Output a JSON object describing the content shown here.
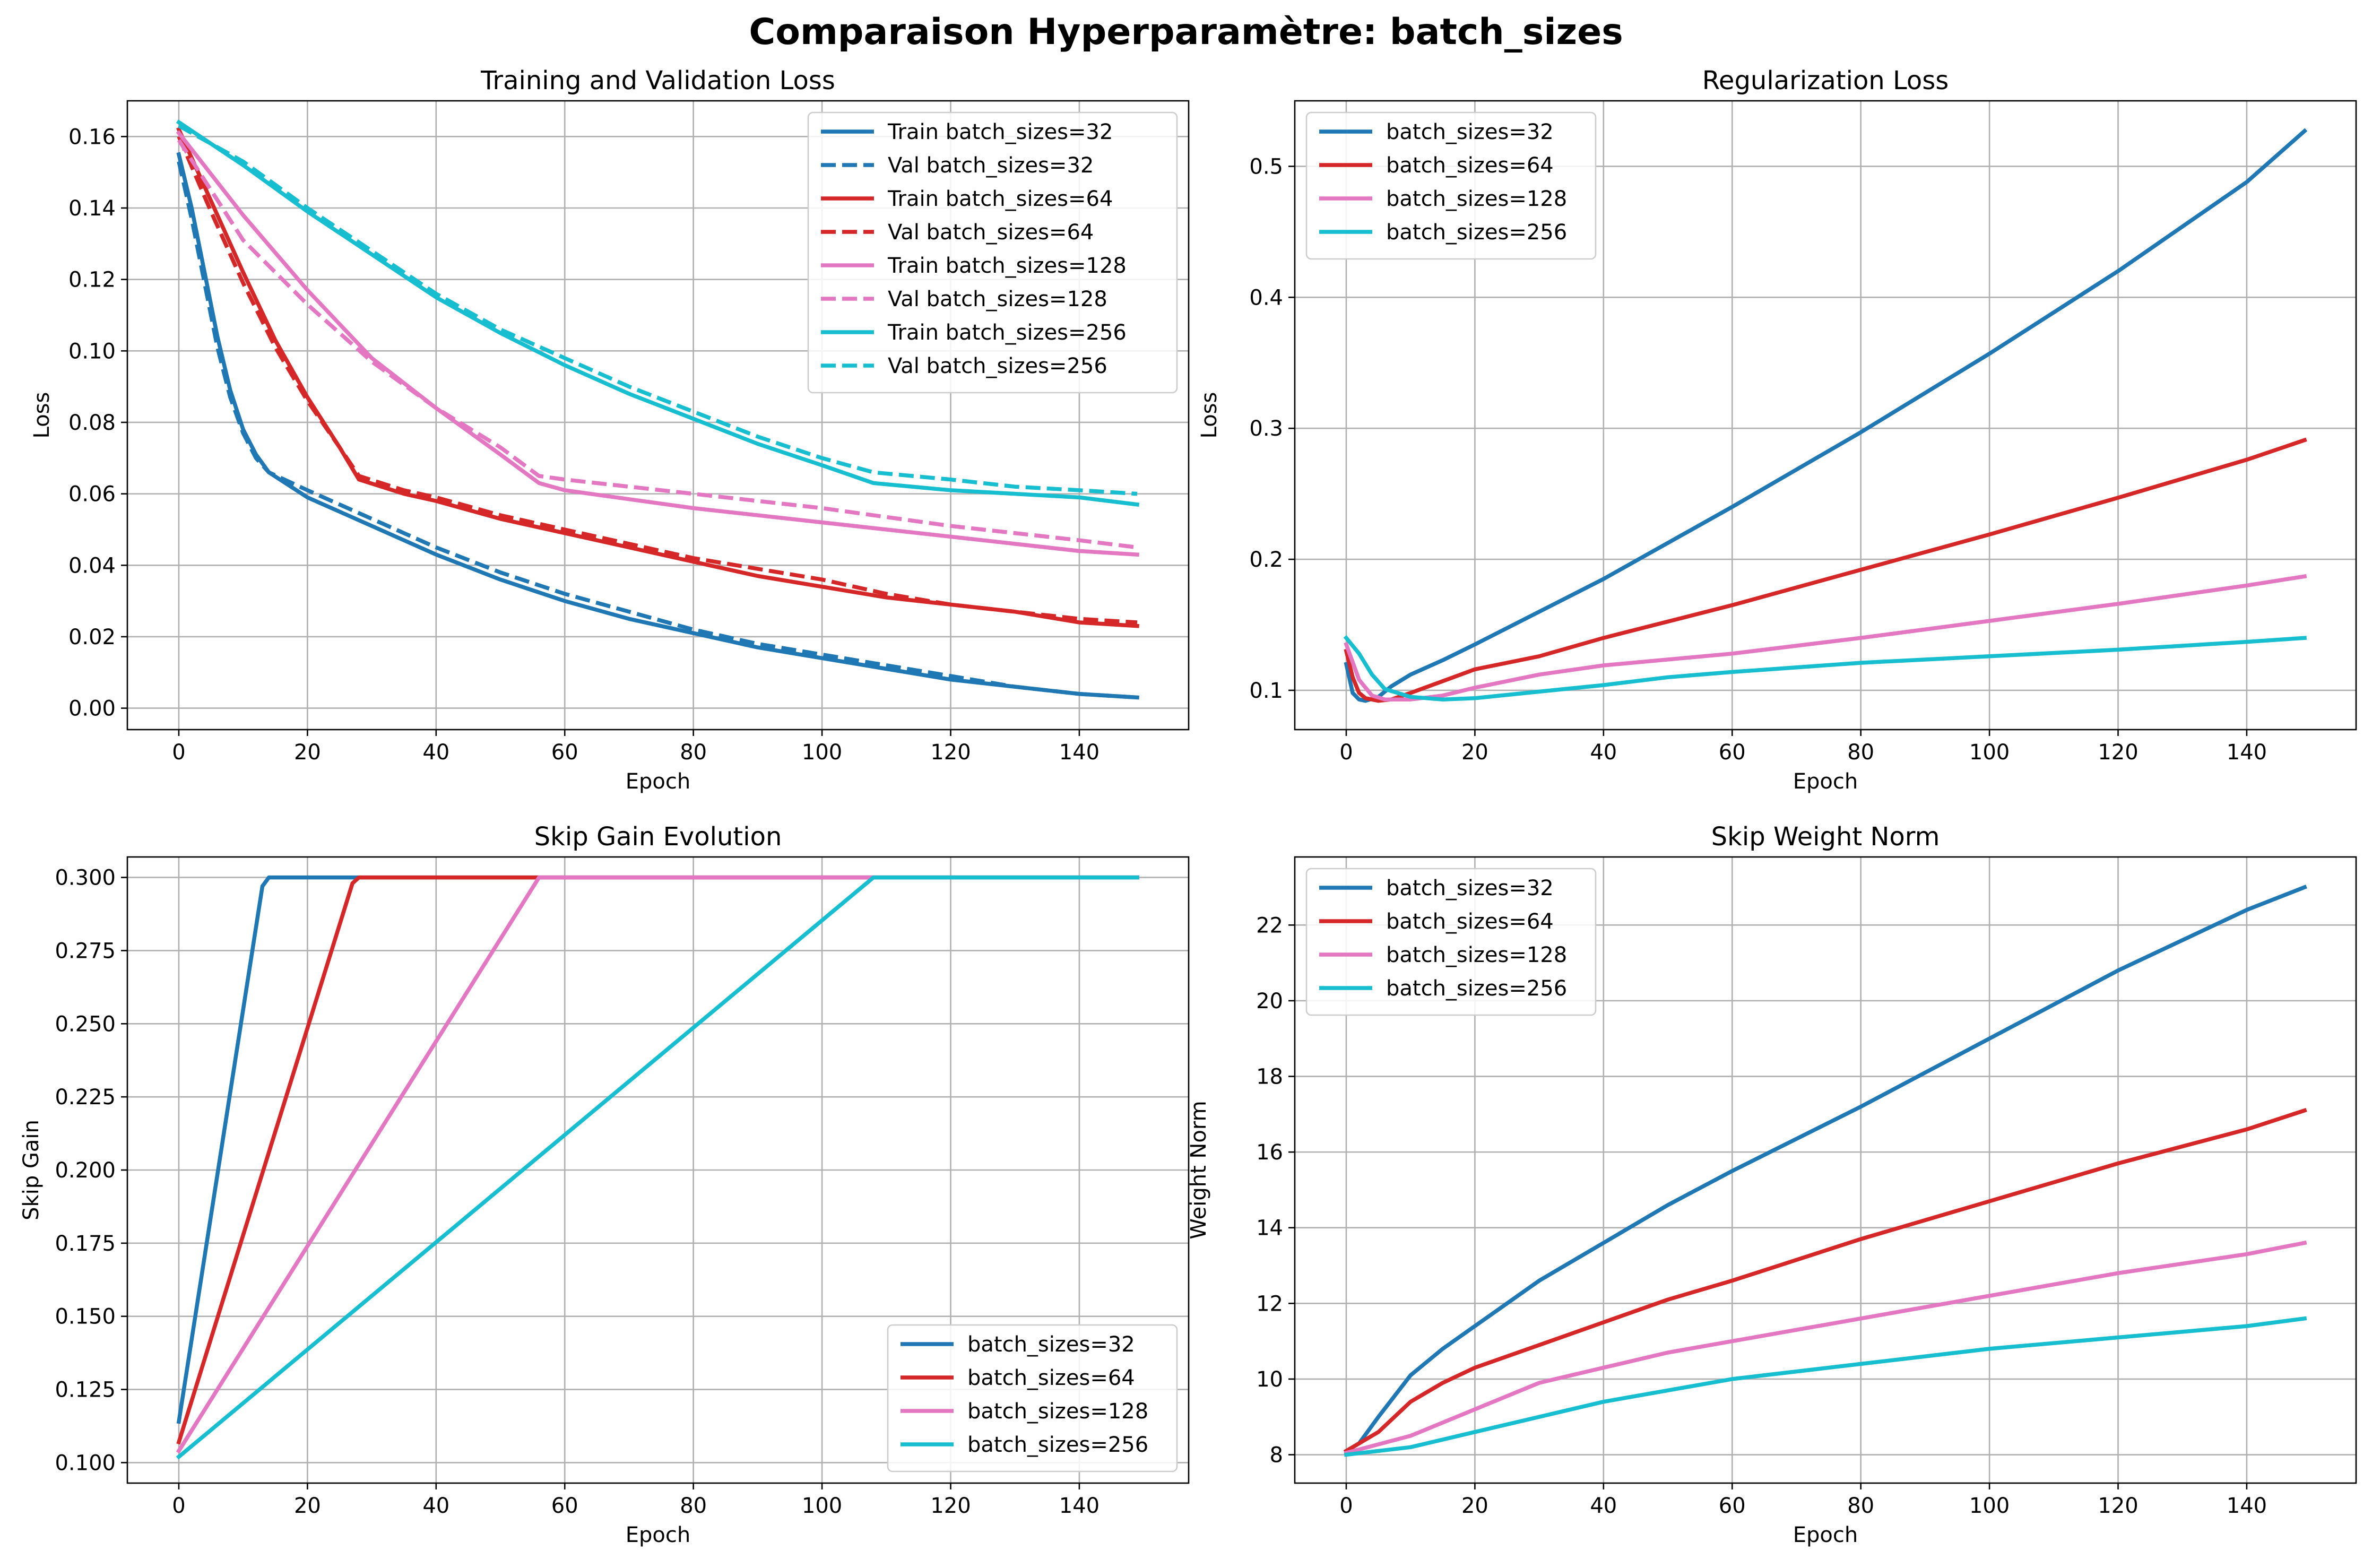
{
  "figure": {
    "title": "Comparaison Hyperparamètre: batch_sizes"
  },
  "colors": {
    "32": "#1f77b4",
    "64": "#d62728",
    "128": "#e377c2",
    "256": "#17becf",
    "grid": "#b0b0b0"
  },
  "chart_data": [
    {
      "type": "line",
      "title": "Training and Validation Loss",
      "xlabel": "Epoch",
      "ylabel": "Loss",
      "xlim": [
        -8,
        157
      ],
      "ylim": [
        -0.006,
        0.17
      ],
      "xticks": [
        0,
        20,
        40,
        60,
        80,
        100,
        120,
        140
      ],
      "yticks": [
        0.0,
        0.02,
        0.04,
        0.06,
        0.08,
        0.1,
        0.12,
        0.14,
        0.16
      ],
      "tick_decimals": 2,
      "grid": true,
      "legend": "upper right",
      "series": [
        {
          "name": "Train batch_sizes=32",
          "color": "#1f77b4",
          "dash": false,
          "x": [
            0,
            2,
            4,
            6,
            8,
            10,
            12,
            14,
            20,
            30,
            40,
            50,
            60,
            70,
            80,
            90,
            100,
            110,
            120,
            130,
            140,
            149
          ],
          "y": [
            0.155,
            0.14,
            0.122,
            0.104,
            0.089,
            0.078,
            0.071,
            0.066,
            0.059,
            0.051,
            0.043,
            0.036,
            0.03,
            0.025,
            0.021,
            0.017,
            0.014,
            0.011,
            0.008,
            0.006,
            0.004,
            0.003
          ]
        },
        {
          "name": "Val batch_sizes=32",
          "color": "#1f77b4",
          "dash": true,
          "x": [
            0,
            2,
            4,
            6,
            8,
            10,
            12,
            14,
            20,
            30,
            40,
            50,
            60,
            70,
            80,
            90,
            100,
            110,
            120,
            130,
            140,
            149
          ],
          "y": [
            0.153,
            0.137,
            0.119,
            0.101,
            0.087,
            0.077,
            0.07,
            0.066,
            0.061,
            0.053,
            0.045,
            0.038,
            0.032,
            0.027,
            0.022,
            0.018,
            0.015,
            0.012,
            0.009,
            0.006,
            0.004,
            0.003
          ]
        },
        {
          "name": "Train batch_sizes=64",
          "color": "#d62728",
          "dash": false,
          "x": [
            0,
            5,
            10,
            15,
            20,
            25,
            28,
            35,
            40,
            50,
            60,
            70,
            80,
            90,
            100,
            110,
            120,
            130,
            140,
            149
          ],
          "y": [
            0.162,
            0.142,
            0.122,
            0.103,
            0.087,
            0.073,
            0.064,
            0.06,
            0.058,
            0.053,
            0.049,
            0.045,
            0.041,
            0.037,
            0.034,
            0.031,
            0.029,
            0.027,
            0.024,
            0.023
          ]
        },
        {
          "name": "Val batch_sizes=64",
          "color": "#d62728",
          "dash": true,
          "x": [
            0,
            5,
            10,
            15,
            20,
            25,
            28,
            35,
            40,
            50,
            60,
            70,
            80,
            90,
            100,
            110,
            120,
            130,
            140,
            149
          ],
          "y": [
            0.16,
            0.139,
            0.119,
            0.101,
            0.086,
            0.073,
            0.065,
            0.061,
            0.059,
            0.054,
            0.05,
            0.046,
            0.042,
            0.039,
            0.036,
            0.032,
            0.029,
            0.027,
            0.025,
            0.024
          ]
        },
        {
          "name": "Train batch_sizes=128",
          "color": "#e377c2",
          "dash": false,
          "x": [
            0,
            10,
            20,
            30,
            40,
            50,
            56,
            60,
            80,
            100,
            120,
            140,
            149
          ],
          "y": [
            0.161,
            0.138,
            0.117,
            0.098,
            0.084,
            0.071,
            0.063,
            0.061,
            0.056,
            0.052,
            0.048,
            0.044,
            0.043
          ]
        },
        {
          "name": "Val batch_sizes=128",
          "color": "#e377c2",
          "dash": true,
          "x": [
            0,
            10,
            20,
            30,
            40,
            50,
            56,
            60,
            80,
            100,
            120,
            140,
            149
          ],
          "y": [
            0.159,
            0.131,
            0.113,
            0.097,
            0.084,
            0.073,
            0.065,
            0.064,
            0.06,
            0.056,
            0.051,
            0.047,
            0.045
          ]
        },
        {
          "name": "Train batch_sizes=256",
          "color": "#17becf",
          "dash": false,
          "x": [
            0,
            10,
            20,
            30,
            40,
            50,
            60,
            70,
            80,
            90,
            100,
            108,
            120,
            130,
            140,
            149
          ],
          "y": [
            0.164,
            0.152,
            0.139,
            0.127,
            0.115,
            0.105,
            0.096,
            0.088,
            0.081,
            0.074,
            0.068,
            0.063,
            0.061,
            0.06,
            0.059,
            0.057
          ]
        },
        {
          "name": "Val batch_sizes=256",
          "color": "#17becf",
          "dash": true,
          "x": [
            0,
            10,
            20,
            30,
            40,
            50,
            60,
            70,
            80,
            90,
            100,
            108,
            120,
            130,
            140,
            149
          ],
          "y": [
            0.163,
            0.153,
            0.14,
            0.128,
            0.116,
            0.106,
            0.098,
            0.09,
            0.083,
            0.076,
            0.07,
            0.066,
            0.064,
            0.062,
            0.061,
            0.06
          ]
        }
      ]
    },
    {
      "type": "line",
      "title": "Regularization Loss",
      "xlabel": "Epoch",
      "ylabel": "Loss",
      "xlim": [
        -8,
        157
      ],
      "ylim": [
        0.07,
        0.55
      ],
      "xticks": [
        0,
        20,
        40,
        60,
        80,
        100,
        120,
        140
      ],
      "yticks": [
        0.1,
        0.2,
        0.3,
        0.4,
        0.5
      ],
      "tick_decimals": 1,
      "grid": true,
      "legend": "upper left",
      "series": [
        {
          "name": "batch_sizes=32",
          "color": "#1f77b4",
          "dash": false,
          "x": [
            0,
            1,
            2,
            3,
            5,
            7,
            10,
            15,
            20,
            40,
            60,
            80,
            100,
            120,
            140,
            149
          ],
          "y": [
            0.12,
            0.098,
            0.093,
            0.092,
            0.095,
            0.103,
            0.112,
            0.123,
            0.135,
            0.185,
            0.24,
            0.297,
            0.357,
            0.42,
            0.488,
            0.527
          ]
        },
        {
          "name": "batch_sizes=64",
          "color": "#d62728",
          "dash": false,
          "x": [
            0,
            1,
            2,
            3,
            5,
            7,
            10,
            15,
            20,
            30,
            40,
            60,
            80,
            100,
            120,
            140,
            149
          ],
          "y": [
            0.13,
            0.11,
            0.098,
            0.094,
            0.092,
            0.093,
            0.098,
            0.107,
            0.116,
            0.126,
            0.14,
            0.165,
            0.192,
            0.219,
            0.247,
            0.276,
            0.291
          ]
        },
        {
          "name": "batch_sizes=128",
          "color": "#e377c2",
          "dash": false,
          "x": [
            0,
            2,
            4,
            6,
            10,
            15,
            20,
            30,
            40,
            60,
            80,
            100,
            120,
            140,
            149
          ],
          "y": [
            0.135,
            0.108,
            0.096,
            0.093,
            0.093,
            0.096,
            0.102,
            0.112,
            0.119,
            0.128,
            0.14,
            0.153,
            0.166,
            0.18,
            0.187
          ]
        },
        {
          "name": "batch_sizes=256",
          "color": "#17becf",
          "dash": false,
          "x": [
            0,
            2,
            4,
            6,
            10,
            15,
            20,
            30,
            40,
            50,
            60,
            80,
            100,
            120,
            140,
            149
          ],
          "y": [
            0.14,
            0.128,
            0.112,
            0.101,
            0.095,
            0.093,
            0.094,
            0.099,
            0.104,
            0.11,
            0.114,
            0.121,
            0.126,
            0.131,
            0.137,
            0.14
          ]
        }
      ]
    },
    {
      "type": "line",
      "title": "Skip Gain Evolution",
      "xlabel": "Epoch",
      "ylabel": "Skip Gain",
      "xlim": [
        -8,
        157
      ],
      "ylim": [
        0.093,
        0.307
      ],
      "xticks": [
        0,
        20,
        40,
        60,
        80,
        100,
        120,
        140
      ],
      "yticks": [
        0.1,
        0.125,
        0.15,
        0.175,
        0.2,
        0.225,
        0.25,
        0.275,
        0.3
      ],
      "tick_decimals": 3,
      "grid": true,
      "legend": "lower right",
      "series": [
        {
          "name": "batch_sizes=32",
          "color": "#1f77b4",
          "dash": false,
          "x": [
            0,
            13,
            14,
            149
          ],
          "y": [
            0.114,
            0.297,
            0.3,
            0.3
          ]
        },
        {
          "name": "batch_sizes=64",
          "color": "#d62728",
          "dash": false,
          "x": [
            0,
            27,
            28,
            149
          ],
          "y": [
            0.107,
            0.298,
            0.3,
            0.3
          ]
        },
        {
          "name": "batch_sizes=128",
          "color": "#e377c2",
          "dash": false,
          "x": [
            0,
            56,
            149
          ],
          "y": [
            0.104,
            0.3,
            0.3
          ]
        },
        {
          "name": "batch_sizes=256",
          "color": "#17becf",
          "dash": false,
          "x": [
            0,
            108,
            149
          ],
          "y": [
            0.102,
            0.3,
            0.3
          ]
        }
      ]
    },
    {
      "type": "line",
      "title": "Skip Weight Norm",
      "xlabel": "Epoch",
      "ylabel": "Weight Norm",
      "xlim": [
        -8,
        157
      ],
      "ylim": [
        7.25,
        23.8
      ],
      "xticks": [
        0,
        20,
        40,
        60,
        80,
        100,
        120,
        140
      ],
      "yticks": [
        8,
        10,
        12,
        14,
        16,
        18,
        20,
        22
      ],
      "tick_decimals": 0,
      "grid": true,
      "legend": "upper left",
      "series": [
        {
          "name": "batch_sizes=32",
          "color": "#1f77b4",
          "dash": false,
          "x": [
            0,
            2,
            5,
            10,
            15,
            20,
            30,
            40,
            50,
            60,
            80,
            100,
            120,
            140,
            149
          ],
          "y": [
            8.1,
            8.3,
            9.0,
            10.1,
            10.8,
            11.4,
            12.6,
            13.6,
            14.6,
            15.5,
            17.2,
            19.0,
            20.8,
            22.4,
            23.0
          ]
        },
        {
          "name": "batch_sizes=64",
          "color": "#d62728",
          "dash": false,
          "x": [
            0,
            5,
            10,
            15,
            20,
            30,
            40,
            50,
            60,
            80,
            100,
            120,
            140,
            149
          ],
          "y": [
            8.1,
            8.6,
            9.4,
            9.9,
            10.3,
            10.9,
            11.5,
            12.1,
            12.6,
            13.7,
            14.7,
            15.7,
            16.6,
            17.1
          ]
        },
        {
          "name": "batch_sizes=128",
          "color": "#e377c2",
          "dash": false,
          "x": [
            0,
            10,
            20,
            30,
            40,
            50,
            60,
            80,
            100,
            120,
            140,
            149
          ],
          "y": [
            8.05,
            8.5,
            9.2,
            9.9,
            10.3,
            10.7,
            11.0,
            11.6,
            12.2,
            12.8,
            13.3,
            13.6
          ]
        },
        {
          "name": "batch_sizes=256",
          "color": "#17becf",
          "dash": false,
          "x": [
            0,
            10,
            20,
            30,
            40,
            50,
            60,
            80,
            100,
            120,
            140,
            149
          ],
          "y": [
            8.0,
            8.2,
            8.6,
            9.0,
            9.4,
            9.7,
            10.0,
            10.4,
            10.8,
            11.1,
            11.4,
            11.6
          ]
        }
      ]
    }
  ]
}
